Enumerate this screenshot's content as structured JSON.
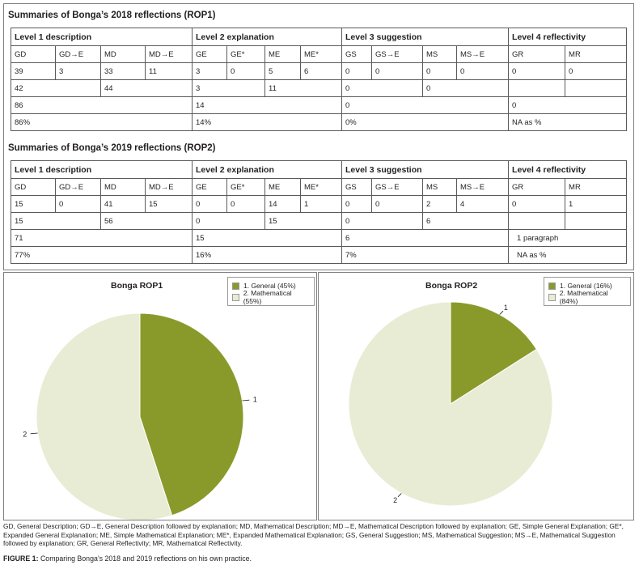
{
  "rop1": {
    "title": "Summaries of Bonga’s 2018 reflections (ROP1)",
    "levels": [
      "Level 1 description",
      "Level 2 explanation",
      "Level 3 suggestion",
      "Level 4 reflectivity"
    ],
    "codes": [
      "GD",
      "GD→E",
      "MD",
      "MD→E",
      "GE",
      "GE*",
      "ME",
      "ME*",
      "GS",
      "GS→E",
      "MS",
      "MS→E",
      "GR",
      "MR"
    ],
    "counts": [
      "39",
      "3",
      "33",
      "11",
      "3",
      "0",
      "5",
      "6",
      "0",
      "0",
      "0",
      "0",
      "0",
      "0"
    ],
    "subtotals": [
      "42",
      "44",
      "3",
      "11",
      "0",
      "0"
    ],
    "totals": [
      "86",
      "14",
      "0",
      "0"
    ],
    "percents": [
      "86%",
      "14%",
      "0%",
      "NA as %"
    ]
  },
  "rop2": {
    "title": "Summaries of Bonga’s 2019 reflections (ROP2)",
    "levels": [
      "Level 1 description",
      "Level 2 explanation",
      "Level 3 suggestion",
      "Level 4 reflectivity"
    ],
    "codes": [
      "GD",
      "GD→E",
      "MD",
      "MD→E",
      "GE",
      "GE*",
      "ME",
      "ME*",
      "GS",
      "GS→E",
      "MS",
      "MS→E",
      "GR",
      "MR"
    ],
    "counts": [
      "15",
      "0",
      "41",
      "15",
      "0",
      "0",
      "14",
      "1",
      "0",
      "0",
      "2",
      "4",
      "0",
      "1"
    ],
    "subtotals": [
      "15",
      "56",
      "0",
      "15",
      "0",
      "6"
    ],
    "totals": [
      "71",
      "15",
      "6",
      "1 paragraph"
    ],
    "percents": [
      "77%",
      "16%",
      "7%",
      "NA as %"
    ]
  },
  "chart_data": [
    {
      "type": "pie",
      "title": "Bonga ROP1",
      "labels": [
        "1. General (45%)",
        "2. Mathematical (55%)"
      ],
      "slice_labels": [
        "1",
        "2"
      ],
      "values": [
        45,
        55
      ],
      "colors": [
        "#8a9a2a",
        "#e9ecd4"
      ],
      "legend": "top-right"
    },
    {
      "type": "pie",
      "title": "Bonga ROP2",
      "labels": [
        "1. General (16%)",
        "2. Mathematical (84%)"
      ],
      "slice_labels": [
        "1",
        "2"
      ],
      "values": [
        16,
        84
      ],
      "colors": [
        "#8a9a2a",
        "#e9ecd4"
      ],
      "legend": "top-right"
    }
  ],
  "footnote": "GD, General Description; GD→E, General Description followed by explanation; MD, Mathematical Description; MD→E, Mathematical Description followed by explanation; GE, Simple General Explanation; GE*, Expanded General Explanation; ME, Simple Mathematical Explanation; ME*, Expanded Mathematical Explanation; GS, General Suggestion; MS, Mathematical Suggestion; MS→E, Mathematical Suggestion followed by explanation; GR, General Reflectivity; MR, Mathematical Reflectivity.",
  "caption": {
    "label": "FIGURE 1:",
    "text": "Comparing Bonga’s 2018 and 2019 reflections on his own practice."
  }
}
